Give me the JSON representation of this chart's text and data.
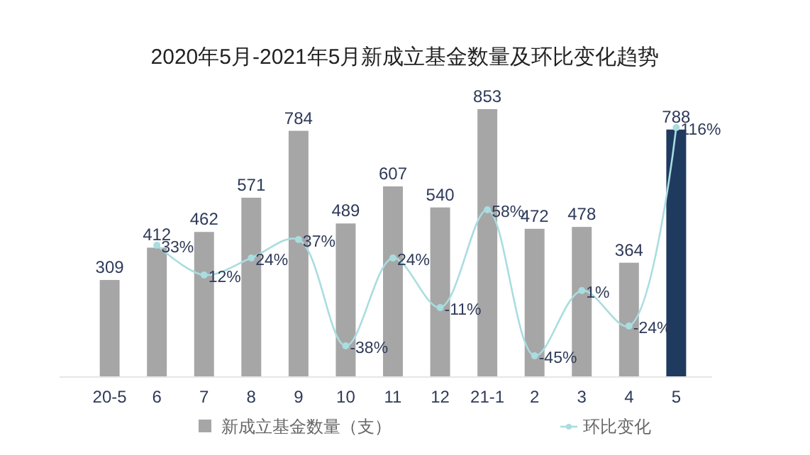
{
  "chart_data": {
    "type": "bar",
    "title": "2020年5月-2021年5月新成立基金数量及环比变化趋势",
    "categories": [
      "20-5",
      "6",
      "7",
      "8",
      "9",
      "10",
      "11",
      "12",
      "21-1",
      "2",
      "3",
      "4",
      "5"
    ],
    "series": [
      {
        "name": "新成立基金数量（支）",
        "color": "#a6a6a6",
        "colors": [
          "#a6a6a6",
          "#a6a6a6",
          "#a6a6a6",
          "#a6a6a6",
          "#a6a6a6",
          "#a6a6a6",
          "#a6a6a6",
          "#a6a6a6",
          "#a6a6a6",
          "#a6a6a6",
          "#a6a6a6",
          "#a6a6a6",
          "#1f3a5f"
        ],
        "values": [
          309,
          412,
          462,
          571,
          784,
          489,
          607,
          540,
          853,
          472,
          478,
          364,
          788
        ]
      },
      {
        "name": "环比变化",
        "type": "line",
        "axis": "y2",
        "color": "#a9dde0",
        "values": [
          null,
          33,
          12,
          24,
          37,
          -38,
          24,
          -11,
          58,
          -45,
          1,
          -24,
          116
        ],
        "value_labels": [
          null,
          "33%",
          "12%",
          "24%",
          "37%",
          "-38%",
          "24%",
          "-11%",
          "58%",
          "-45%",
          "1%",
          "-24%",
          "116%"
        ]
      }
    ],
    "tick_labels": "x",
    "data_labels": true,
    "legend": "bottom",
    "marker": "circle",
    "line_style": "solid",
    "grid": false
  }
}
